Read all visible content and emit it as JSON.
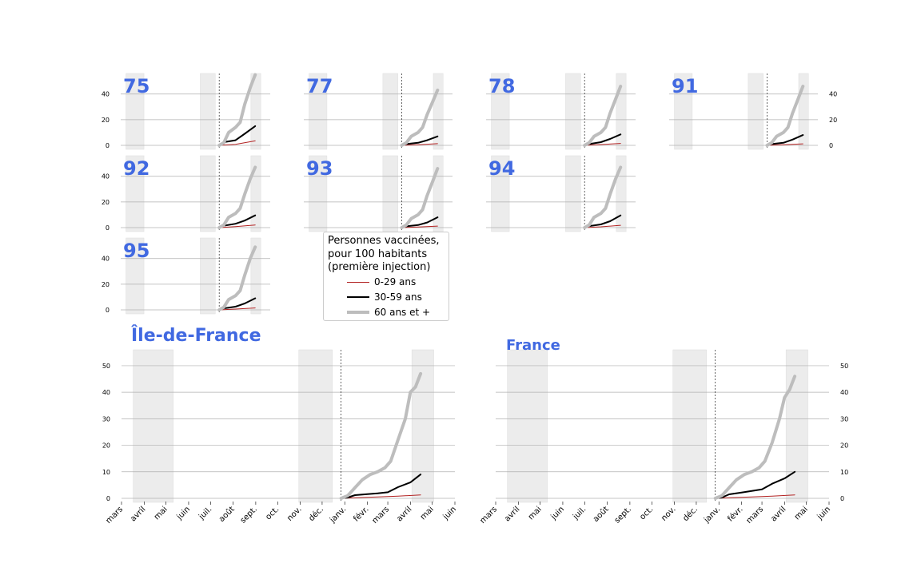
{
  "legend": {
    "title_lines": [
      "Personnes vaccinées,",
      "pour 100 habitants",
      "(première injection)"
    ],
    "entries": [
      {
        "label": "0-29 ans",
        "color": "#b22222"
      },
      {
        "label": "30-59 ans",
        "color": "#000000"
      },
      {
        "label": "60 ans et +",
        "color": "#bdbdbd"
      }
    ]
  },
  "chart_data": [
    {
      "type": "line",
      "title": "75",
      "ylim": [
        0,
        56
      ],
      "yticks": [
        0,
        20,
        40
      ],
      "xlim": [
        "2020-03-01",
        "2021-06-01"
      ],
      "shaded_periods": [
        [
          "2020-03-17",
          "2020-05-11"
        ],
        [
          "2020-10-30",
          "2020-12-15"
        ],
        [
          "2021-04-03",
          "2021-05-03"
        ]
      ],
      "marker_date": "2020-12-27",
      "series": [
        {
          "name": "0-29 ans",
          "x": [
            "2020-12-27",
            "2021-02-15",
            "2021-04-16"
          ],
          "y": [
            0,
            0.8,
            3.5
          ]
        },
        {
          "name": "30-59 ans",
          "x": [
            "2020-12-27",
            "2021-01-10",
            "2021-02-15",
            "2021-03-15",
            "2021-04-16"
          ],
          "y": [
            0,
            2.5,
            4,
            9,
            15
          ]
        },
        {
          "name": "60 ans et +",
          "x": [
            "2020-12-27",
            "2021-01-10",
            "2021-01-25",
            "2021-02-15",
            "2021-03-01",
            "2021-03-15",
            "2021-04-01",
            "2021-04-16"
          ],
          "y": [
            0,
            2,
            10,
            14,
            18,
            32,
            45,
            55
          ]
        }
      ]
    },
    {
      "type": "line",
      "title": "77",
      "ylim": [
        0,
        56
      ],
      "yticks": [
        0,
        20,
        40
      ],
      "xlim": [
        "2020-03-01",
        "2021-06-01"
      ],
      "shaded_periods": [
        [
          "2020-03-17",
          "2020-05-11"
        ],
        [
          "2020-10-30",
          "2020-12-15"
        ],
        [
          "2021-04-03",
          "2021-05-03"
        ]
      ],
      "marker_date": "2020-12-27",
      "series": [
        {
          "name": "0-29 ans",
          "x": [
            "2020-12-27",
            "2021-02-15",
            "2021-04-16"
          ],
          "y": [
            0,
            0.5,
            1.3
          ]
        },
        {
          "name": "30-59 ans",
          "x": [
            "2020-12-27",
            "2021-01-10",
            "2021-02-15",
            "2021-03-15",
            "2021-04-16"
          ],
          "y": [
            0,
            1,
            2,
            4,
            7
          ]
        },
        {
          "name": "60 ans et +",
          "x": [
            "2020-12-27",
            "2021-01-10",
            "2021-01-25",
            "2021-02-15",
            "2021-03-01",
            "2021-03-15",
            "2021-04-01",
            "2021-04-16"
          ],
          "y": [
            0,
            2,
            7,
            10,
            14,
            24,
            34,
            43
          ]
        }
      ]
    },
    {
      "type": "line",
      "title": "78",
      "ylim": [
        0,
        56
      ],
      "yticks": [
        0,
        20,
        40
      ],
      "xlim": [
        "2020-03-01",
        "2021-06-01"
      ],
      "shaded_periods": [
        [
          "2020-03-17",
          "2020-05-11"
        ],
        [
          "2020-10-30",
          "2020-12-15"
        ],
        [
          "2021-04-03",
          "2021-05-03"
        ]
      ],
      "marker_date": "2020-12-27",
      "series": [
        {
          "name": "0-29 ans",
          "x": [
            "2020-12-27",
            "2021-02-15",
            "2021-04-16"
          ],
          "y": [
            0,
            0.6,
            1.5
          ]
        },
        {
          "name": "30-59 ans",
          "x": [
            "2020-12-27",
            "2021-01-10",
            "2021-02-15",
            "2021-03-15",
            "2021-04-16"
          ],
          "y": [
            0,
            1,
            2.5,
            5,
            8.5
          ]
        },
        {
          "name": "60 ans et +",
          "x": [
            "2020-12-27",
            "2021-01-10",
            "2021-01-25",
            "2021-02-15",
            "2021-03-01",
            "2021-03-15",
            "2021-04-01",
            "2021-04-16"
          ],
          "y": [
            0,
            2,
            7,
            10,
            14,
            25,
            36,
            46
          ]
        }
      ]
    },
    {
      "type": "line",
      "title": "91",
      "ylim": [
        0,
        56
      ],
      "yticks": [
        0,
        20,
        40
      ],
      "xlim": [
        "2020-03-01",
        "2021-06-01"
      ],
      "shaded_periods": [
        [
          "2020-03-17",
          "2020-05-11"
        ],
        [
          "2020-10-30",
          "2020-12-15"
        ],
        [
          "2021-04-03",
          "2021-05-03"
        ]
      ],
      "marker_date": "2020-12-27",
      "series": [
        {
          "name": "0-29 ans",
          "x": [
            "2020-12-27",
            "2021-02-15",
            "2021-04-16"
          ],
          "y": [
            0,
            0.5,
            1.2
          ]
        },
        {
          "name": "30-59 ans",
          "x": [
            "2020-12-27",
            "2021-01-10",
            "2021-02-15",
            "2021-03-15",
            "2021-04-16"
          ],
          "y": [
            0,
            1,
            2,
            4.5,
            8
          ]
        },
        {
          "name": "60 ans et +",
          "x": [
            "2020-12-27",
            "2021-01-10",
            "2021-01-25",
            "2021-02-15",
            "2021-03-01",
            "2021-03-15",
            "2021-04-01",
            "2021-04-16"
          ],
          "y": [
            0,
            2,
            7,
            10,
            14,
            25,
            36,
            46
          ]
        }
      ]
    },
    {
      "type": "line",
      "title": "92",
      "ylim": [
        0,
        56
      ],
      "yticks": [
        0,
        20,
        40
      ],
      "xlim": [
        "2020-03-01",
        "2021-06-01"
      ],
      "shaded_periods": [
        [
          "2020-03-17",
          "2020-05-11"
        ],
        [
          "2020-10-30",
          "2020-12-15"
        ],
        [
          "2021-04-03",
          "2021-05-03"
        ]
      ],
      "marker_date": "2020-12-27",
      "series": [
        {
          "name": "0-29 ans",
          "x": [
            "2020-12-27",
            "2021-02-15",
            "2021-04-16"
          ],
          "y": [
            0,
            0.8,
            2
          ]
        },
        {
          "name": "30-59 ans",
          "x": [
            "2020-12-27",
            "2021-01-10",
            "2021-02-15",
            "2021-03-15",
            "2021-04-16"
          ],
          "y": [
            0,
            1.5,
            3,
            5.5,
            9.5
          ]
        },
        {
          "name": "60 ans et +",
          "x": [
            "2020-12-27",
            "2021-01-10",
            "2021-01-25",
            "2021-02-15",
            "2021-03-01",
            "2021-03-15",
            "2021-04-01",
            "2021-04-16"
          ],
          "y": [
            0,
            2,
            8,
            11,
            15,
            26,
            38,
            47
          ]
        }
      ]
    },
    {
      "type": "line",
      "title": "93",
      "ylim": [
        0,
        56
      ],
      "yticks": [
        0,
        20,
        40
      ],
      "xlim": [
        "2020-03-01",
        "2021-06-01"
      ],
      "shaded_periods": [
        [
          "2020-03-17",
          "2020-05-11"
        ],
        [
          "2020-10-30",
          "2020-12-15"
        ],
        [
          "2021-04-03",
          "2021-05-03"
        ]
      ],
      "marker_date": "2020-12-27",
      "series": [
        {
          "name": "0-29 ans",
          "x": [
            "2020-12-27",
            "2021-02-15",
            "2021-04-16"
          ],
          "y": [
            0,
            0.5,
            1.2
          ]
        },
        {
          "name": "30-59 ans",
          "x": [
            "2020-12-27",
            "2021-01-10",
            "2021-02-15",
            "2021-03-15",
            "2021-04-16"
          ],
          "y": [
            0,
            1,
            2,
            4,
            8
          ]
        },
        {
          "name": "60 ans et +",
          "x": [
            "2020-12-27",
            "2021-01-10",
            "2021-01-25",
            "2021-02-15",
            "2021-03-01",
            "2021-03-15",
            "2021-04-01",
            "2021-04-16"
          ],
          "y": [
            0,
            2,
            7,
            10,
            14,
            25,
            36,
            46
          ]
        }
      ]
    },
    {
      "type": "line",
      "title": "94",
      "ylim": [
        0,
        56
      ],
      "yticks": [
        0,
        20,
        40
      ],
      "xlim": [
        "2020-03-01",
        "2021-06-01"
      ],
      "shaded_periods": [
        [
          "2020-03-17",
          "2020-05-11"
        ],
        [
          "2020-10-30",
          "2020-12-15"
        ],
        [
          "2021-04-03",
          "2021-05-03"
        ]
      ],
      "marker_date": "2020-12-27",
      "series": [
        {
          "name": "0-29 ans",
          "x": [
            "2020-12-27",
            "2021-02-15",
            "2021-04-16"
          ],
          "y": [
            0,
            0.6,
            1.8
          ]
        },
        {
          "name": "30-59 ans",
          "x": [
            "2020-12-27",
            "2021-01-10",
            "2021-02-15",
            "2021-03-15",
            "2021-04-16"
          ],
          "y": [
            0,
            1.2,
            2.5,
            5,
            9.5
          ]
        },
        {
          "name": "60 ans et +",
          "x": [
            "2020-12-27",
            "2021-01-10",
            "2021-01-25",
            "2021-02-15",
            "2021-03-01",
            "2021-03-15",
            "2021-04-01",
            "2021-04-16"
          ],
          "y": [
            0,
            2,
            8,
            11,
            15,
            26,
            38,
            47
          ]
        }
      ]
    },
    {
      "type": "line",
      "title": "95",
      "ylim": [
        0,
        56
      ],
      "yticks": [
        0,
        20,
        40
      ],
      "xlim": [
        "2020-03-01",
        "2021-06-01"
      ],
      "shaded_periods": [
        [
          "2020-03-17",
          "2020-05-11"
        ],
        [
          "2020-10-30",
          "2020-12-15"
        ],
        [
          "2021-04-03",
          "2021-05-03"
        ]
      ],
      "marker_date": "2020-12-27",
      "series": [
        {
          "name": "0-29 ans",
          "x": [
            "2020-12-27",
            "2021-02-15",
            "2021-04-16"
          ],
          "y": [
            0,
            0.6,
            1.5
          ]
        },
        {
          "name": "30-59 ans",
          "x": [
            "2020-12-27",
            "2021-01-10",
            "2021-02-15",
            "2021-03-15",
            "2021-04-16"
          ],
          "y": [
            0,
            1.2,
            2.5,
            5,
            9
          ]
        },
        {
          "name": "60 ans et +",
          "x": [
            "2020-12-27",
            "2021-01-10",
            "2021-01-25",
            "2021-02-15",
            "2021-03-01",
            "2021-03-15",
            "2021-04-01",
            "2021-04-16"
          ],
          "y": [
            0,
            2,
            8,
            11,
            15,
            27,
            40,
            49
          ]
        }
      ]
    },
    {
      "type": "line",
      "title": "Île-de-France",
      "ylim": [
        0,
        56
      ],
      "yticks": [
        0,
        10,
        20,
        30,
        40,
        50
      ],
      "xlim": [
        "2020-03-01",
        "2021-06-01"
      ],
      "xticklabels": [
        "mars",
        "avril",
        "mai",
        "juin",
        "juil.",
        "août",
        "sept.",
        "oct.",
        "nov.",
        "déc.",
        "janv.",
        "févr.",
        "mars",
        "avril",
        "mai",
        "juin"
      ],
      "shaded_periods": [
        [
          "2020-03-17",
          "2020-05-11"
        ],
        [
          "2020-10-30",
          "2020-12-15"
        ],
        [
          "2021-04-03",
          "2021-05-03"
        ]
      ],
      "marker_date": "2020-12-27",
      "series": [
        {
          "name": "0-29 ans",
          "x": [
            "2020-12-27",
            "2021-01-15",
            "2021-02-15",
            "2021-03-15",
            "2021-04-15"
          ],
          "y": [
            0,
            0.2,
            0.5,
            0.8,
            1.3
          ]
        },
        {
          "name": "30-59 ans",
          "x": [
            "2020-12-27",
            "2021-01-05",
            "2021-01-15",
            "2021-02-01",
            "2021-02-15",
            "2021-03-01",
            "2021-03-15",
            "2021-04-01",
            "2021-04-15"
          ],
          "y": [
            0,
            0.3,
            1.2,
            1.6,
            1.9,
            2.3,
            4.2,
            6,
            9
          ]
        },
        {
          "name": "60 ans et +",
          "x": [
            "2020-12-27",
            "2021-01-05",
            "2021-01-15",
            "2021-01-25",
            "2021-02-05",
            "2021-02-15",
            "2021-02-25",
            "2021-03-05",
            "2021-03-15",
            "2021-03-25",
            "2021-04-01",
            "2021-04-08",
            "2021-04-15"
          ],
          "y": [
            0,
            1,
            4,
            7,
            9,
            10,
            11.5,
            14,
            22,
            30,
            40,
            42,
            47
          ]
        }
      ]
    },
    {
      "type": "line",
      "title": "France",
      "ylim": [
        0,
        56
      ],
      "yticks": [
        0,
        10,
        20,
        30,
        40,
        50
      ],
      "xlim": [
        "2020-03-01",
        "2021-06-01"
      ],
      "xticklabels": [
        "mars",
        "avril",
        "mai",
        "juin",
        "juil.",
        "août",
        "sept.",
        "oct.",
        "nov.",
        "déc.",
        "janv.",
        "févr.",
        "mars",
        "avril",
        "mai",
        "juin"
      ],
      "shaded_periods": [
        [
          "2020-03-17",
          "2020-05-11"
        ],
        [
          "2020-10-30",
          "2020-12-15"
        ],
        [
          "2021-04-03",
          "2021-05-03"
        ]
      ],
      "marker_date": "2020-12-27",
      "series": [
        {
          "name": "0-29 ans",
          "x": [
            "2020-12-27",
            "2021-01-15",
            "2021-02-15",
            "2021-03-15",
            "2021-04-15"
          ],
          "y": [
            0,
            0.2,
            0.5,
            0.8,
            1.3
          ]
        },
        {
          "name": "30-59 ans",
          "x": [
            "2020-12-27",
            "2021-01-05",
            "2021-01-15",
            "2021-02-01",
            "2021-02-15",
            "2021-03-01",
            "2021-03-15",
            "2021-04-01",
            "2021-04-15"
          ],
          "y": [
            0,
            0.3,
            1.5,
            2.2,
            2.8,
            3.4,
            5.5,
            7.5,
            10
          ]
        },
        {
          "name": "60 ans et +",
          "x": [
            "2020-12-27",
            "2021-01-05",
            "2021-01-15",
            "2021-01-25",
            "2021-02-05",
            "2021-02-15",
            "2021-02-25",
            "2021-03-05",
            "2021-03-15",
            "2021-03-25",
            "2021-04-01",
            "2021-04-08",
            "2021-04-15"
          ],
          "y": [
            0,
            1,
            4,
            7,
            9,
            10,
            11.5,
            14,
            21,
            30,
            38,
            41,
            46
          ]
        }
      ]
    }
  ]
}
